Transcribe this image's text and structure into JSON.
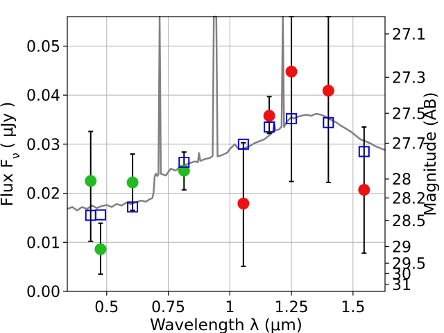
{
  "chart_data": {
    "type": "scatter",
    "xlabel": "Wavelength  λ (μm)",
    "ylabel": "Flux  F",
    "ylabel_sub": "ν",
    "ylabel_unit": "( μJy )",
    "ylabel_right": "Magnitude (AB)",
    "xlim": [
      0.34,
      1.63
    ],
    "ylim": [
      0.0,
      0.056
    ],
    "grid": true,
    "xticks": [
      {
        "value": 0.5,
        "label": "0.5"
      },
      {
        "value": 0.75,
        "label": "0.75"
      },
      {
        "value": 1.0,
        "label": "1"
      },
      {
        "value": 1.25,
        "label": "1.25"
      },
      {
        "value": 1.5,
        "label": "1.5"
      }
    ],
    "yticks": [
      {
        "value": 0.0,
        "label": "0.00"
      },
      {
        "value": 0.01,
        "label": "0.01"
      },
      {
        "value": 0.02,
        "label": "0.02"
      },
      {
        "value": 0.03,
        "label": "0.03"
      },
      {
        "value": 0.04,
        "label": "0.04"
      },
      {
        "value": 0.05,
        "label": "0.05"
      }
    ],
    "mag_ticks": [
      {
        "mag": 27.1,
        "label": "27.1"
      },
      {
        "mag": 27.3,
        "label": "27.3"
      },
      {
        "mag": 27.5,
        "label": "27.5"
      },
      {
        "mag": 27.7,
        "label": "27.7"
      },
      {
        "mag": 28,
        "label": "28"
      },
      {
        "mag": 28.2,
        "label": "28.2"
      },
      {
        "mag": 28.5,
        "label": "28.5"
      },
      {
        "mag": 29,
        "label": "29"
      },
      {
        "mag": 29.5,
        "label": "29.5"
      },
      {
        "mag": 30,
        "label": "30"
      },
      {
        "mag": 31,
        "label": "31"
      }
    ],
    "colors": {
      "green": "#22bb22",
      "red": "#ee1111",
      "model": "#0000cc",
      "spectrum": "#808080",
      "grid": "#b0b0b0"
    },
    "series": [
      {
        "marker": "circle",
        "color": "#22bb22",
        "points": [
          {
            "x": 0.435,
            "y": 0.0225,
            "err_lo": 0.0102,
            "err_hi": 0.0326
          },
          {
            "x": 0.475,
            "y": 0.0086,
            "err_lo": 0.0035,
            "err_hi": 0.0139
          },
          {
            "x": 0.605,
            "y": 0.0222,
            "err_lo": 0.0165,
            "err_hi": 0.028
          },
          {
            "x": 0.814,
            "y": 0.0246,
            "err_lo": 0.0207,
            "err_hi": 0.0284
          }
        ]
      },
      {
        "marker": "circle",
        "color": "#ee1111",
        "points": [
          {
            "x": 1.055,
            "y": 0.0179,
            "err_lo": 0.0051,
            "err_hi": 0.0303
          },
          {
            "x": 1.16,
            "y": 0.0358,
            "err_lo": 0.0322,
            "err_hi": 0.0397
          },
          {
            "x": 1.25,
            "y": 0.0448,
            "err_lo": 0.0224,
            "err_hi": 0.056
          },
          {
            "x": 1.4,
            "y": 0.0409,
            "err_lo": 0.0222,
            "err_hi": 0.056
          },
          {
            "x": 1.545,
            "y": 0.0207,
            "err_lo": 0.0078,
            "err_hi": 0.0335
          }
        ]
      },
      {
        "marker": "square",
        "color": "#0000cc",
        "points": [
          {
            "x": 0.435,
            "y": 0.0155
          },
          {
            "x": 0.475,
            "y": 0.0156
          },
          {
            "x": 0.605,
            "y": 0.0172
          },
          {
            "x": 0.814,
            "y": 0.0263
          },
          {
            "x": 1.055,
            "y": 0.03
          },
          {
            "x": 1.16,
            "y": 0.0335
          },
          {
            "x": 1.25,
            "y": 0.0352
          },
          {
            "x": 1.4,
            "y": 0.0344
          },
          {
            "x": 1.545,
            "y": 0.0285
          }
        ]
      },
      {
        "marker": "line",
        "color": "#808080",
        "points": [
          [
            0.34,
            0.0168
          ],
          [
            0.36,
            0.0172
          ],
          [
            0.38,
            0.0165
          ],
          [
            0.4,
            0.0172
          ],
          [
            0.42,
            0.0168
          ],
          [
            0.44,
            0.0175
          ],
          [
            0.46,
            0.017
          ],
          [
            0.48,
            0.0174
          ],
          [
            0.5,
            0.0176
          ],
          [
            0.52,
            0.0172
          ],
          [
            0.54,
            0.0178
          ],
          [
            0.56,
            0.0175
          ],
          [
            0.58,
            0.0181
          ],
          [
            0.6,
            0.0178
          ],
          [
            0.62,
            0.0182
          ],
          [
            0.64,
            0.0185
          ],
          [
            0.66,
            0.0183
          ],
          [
            0.675,
            0.0188
          ],
          [
            0.685,
            0.019
          ],
          [
            0.69,
            0.02
          ],
          [
            0.695,
            0.0235
          ],
          [
            0.7,
            0.024
          ],
          [
            0.705,
            0.0235
          ],
          [
            0.71,
            0.0238
          ],
          [
            0.715,
            0.056
          ],
          [
            0.72,
            0.024
          ],
          [
            0.74,
            0.0236
          ],
          [
            0.76,
            0.025
          ],
          [
            0.78,
            0.0246
          ],
          [
            0.8,
            0.0255
          ],
          [
            0.82,
            0.0258
          ],
          [
            0.84,
            0.0262
          ],
          [
            0.86,
            0.0265
          ],
          [
            0.87,
            0.0263
          ],
          [
            0.875,
            0.0282
          ],
          [
            0.88,
            0.0266
          ],
          [
            0.9,
            0.027
          ],
          [
            0.92,
            0.0272
          ],
          [
            0.93,
            0.0276
          ],
          [
            0.935,
            0.056
          ],
          [
            0.945,
            0.056
          ],
          [
            0.95,
            0.0275
          ],
          [
            0.97,
            0.0278
          ],
          [
            0.99,
            0.0283
          ],
          [
            1.0,
            0.029
          ],
          [
            1.01,
            0.0295
          ],
          [
            1.02,
            0.03
          ],
          [
            1.03,
            0.0293
          ],
          [
            1.04,
            0.029
          ],
          [
            1.06,
            0.0292
          ],
          [
            1.08,
            0.0296
          ],
          [
            1.1,
            0.0302
          ],
          [
            1.12,
            0.0306
          ],
          [
            1.14,
            0.031
          ],
          [
            1.16,
            0.0318
          ],
          [
            1.175,
            0.0325
          ],
          [
            1.18,
            0.0345
          ],
          [
            1.185,
            0.0328
          ],
          [
            1.2,
            0.033
          ],
          [
            1.21,
            0.0336
          ],
          [
            1.215,
            0.056
          ],
          [
            1.22,
            0.0335
          ],
          [
            1.23,
            0.0345
          ],
          [
            1.24,
            0.035
          ],
          [
            1.25,
            0.0356
          ],
          [
            1.26,
            0.0352
          ],
          [
            1.27,
            0.0355
          ],
          [
            1.29,
            0.0358
          ],
          [
            1.31,
            0.036
          ],
          [
            1.33,
            0.0358
          ],
          [
            1.35,
            0.0362
          ],
          [
            1.37,
            0.036
          ],
          [
            1.39,
            0.0356
          ],
          [
            1.41,
            0.035
          ],
          [
            1.43,
            0.0345
          ],
          [
            1.45,
            0.0338
          ],
          [
            1.47,
            0.0332
          ],
          [
            1.49,
            0.0326
          ],
          [
            1.51,
            0.0318
          ],
          [
            1.53,
            0.031
          ],
          [
            1.55,
            0.0306
          ],
          [
            1.57,
            0.0302
          ],
          [
            1.59,
            0.0296
          ],
          [
            1.61,
            0.0292
          ],
          [
            1.63,
            0.0288
          ]
        ]
      }
    ]
  }
}
